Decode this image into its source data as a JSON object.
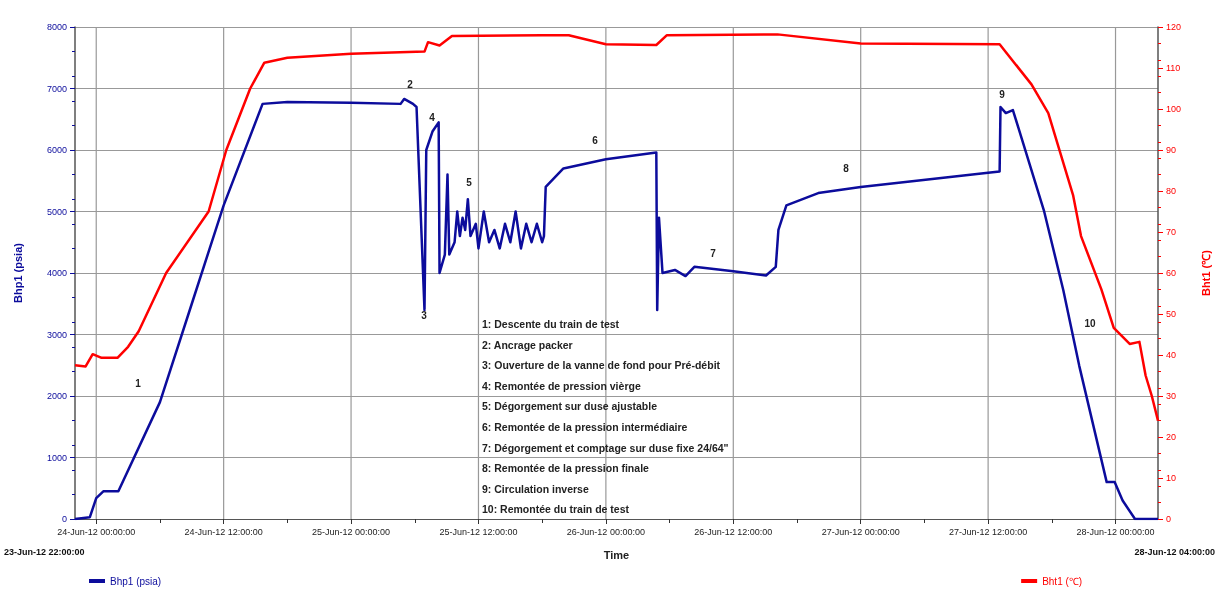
{
  "chart_data": {
    "type": "line",
    "xlabel": "Time",
    "ylabel": "Bhp1 (psia)",
    "y2label": "Bht1 (℃)",
    "xlim": [
      "--06-23T22:00",
      "--06-28T04:00"
    ],
    "xticks": [
      {
        "value": "--06-24T00:00",
        "label": "24-Jun-12 00:00:00"
      },
      {
        "value": "--06-24T06:00",
        "label": null
      },
      {
        "value": "--06-24T12:00",
        "label": "24-Jun-12 12:00:00"
      },
      {
        "value": "--06-24T18:00",
        "label": null
      },
      {
        "value": "--06-25T00:00",
        "label": "25-Jun-12 00:00:00"
      },
      {
        "value": "--06-25T06:00",
        "label": null
      },
      {
        "value": "--06-25T12:00",
        "label": "25-Jun-12 12:00:00"
      },
      {
        "value": "--06-25T18:00",
        "label": null
      },
      {
        "value": "--06-26T00:00",
        "label": "26-Jun-12 00:00:00"
      },
      {
        "value": "--06-26T06:00",
        "label": null
      },
      {
        "value": "--06-26T12:00",
        "label": "26-Jun-12 12:00:00"
      },
      {
        "value": "--06-26T18:00",
        "label": null
      },
      {
        "value": "--06-27T00:00",
        "label": "27-Jun-12 00:00:00"
      },
      {
        "value": "--06-27T06:00",
        "label": null
      },
      {
        "value": "--06-27T12:00",
        "label": "27-Jun-12 12:00:00"
      },
      {
        "value": "--06-27T18:00",
        "label": null
      },
      {
        "value": "--06-28T00:00",
        "label": "28-Jun-12 00:00:00"
      }
    ],
    "ylim": [
      0,
      8000
    ],
    "yticks": [
      0,
      1000,
      2000,
      3000,
      4000,
      5000,
      6000,
      7000,
      8000
    ],
    "y2lim": [
      0,
      120
    ],
    "y2ticks": [
      0,
      10,
      20,
      30,
      40,
      50,
      60,
      70,
      80,
      90,
      100,
      110,
      120
    ],
    "grid": true,
    "legend": "bottom",
    "marker": "none",
    "line_style": "solid",
    "series": [
      {
        "name": "Bhp1 (psia)",
        "color": "#0c0c9c",
        "x": [
          "--06-23T22:00",
          "--06-23T23:24",
          "--06-24T00:00",
          "--06-24T00:40",
          "--06-24T02:05",
          "--06-24T06:00",
          "--06-24T09:00",
          "--06-24T12:00",
          "--06-24T15:40",
          "--06-24T18:00",
          "--06-25T00:00",
          "--06-25T04:40",
          "--06-25T05:00",
          "--06-25T05:50",
          "--06-25T06:10",
          "--06-25T06:55",
          "--06-25T07:05",
          "--06-25T07:40",
          "--06-25T08:15",
          "--06-25T08:20",
          "--06-25T08:50",
          "--06-25T09:05",
          "--06-25T09:15",
          "--06-25T09:45",
          "--06-25T10:00",
          "--06-25T10:15",
          "--06-25T10:30",
          "--06-25T10:45",
          "--06-25T11:00",
          "--06-25T11:15",
          "--06-25T11:45",
          "--06-25T12:00",
          "--06-25T12:30",
          "--06-25T13:00",
          "--06-25T13:30",
          "--06-25T14:00",
          "--06-25T14:30",
          "--06-25T15:00",
          "--06-25T15:30",
          "--06-25T16:00",
          "--06-25T16:30",
          "--06-25T17:00",
          "--06-25T17:30",
          "--06-25T18:00",
          "--06-25T18:10",
          "--06-25T18:20",
          "--06-25T20:00",
          "--06-26T00:00",
          "--06-26T04:45",
          "--06-26T04:50",
          "--06-26T05:00",
          "--06-26T05:20",
          "--06-26T06:30",
          "--06-26T07:30",
          "--06-26T08:20",
          "--06-26T12:00",
          "--06-26T15:05",
          "--06-26T16:00",
          "--06-26T16:15",
          "--06-26T17:00",
          "--06-26T20:00",
          "--06-27T00:00",
          "--06-27T12:00",
          "--06-27T13:05",
          "--06-27T13:10",
          "--06-27T13:40",
          "--06-27T14:20",
          "--06-27T17:15",
          "--06-27T19:05",
          "--06-27T20:35",
          "--06-27T23:10",
          "--06-27T23:55",
          "--06-28T00:40",
          "--06-28T01:50",
          "--06-28T04:00"
        ],
        "values": [
          0,
          30,
          340,
          450,
          450,
          1900,
          3500,
          5100,
          6750,
          6780,
          6770,
          6750,
          6830,
          6750,
          6700,
          3400,
          6000,
          6300,
          6450,
          4000,
          4300,
          5600,
          4300,
          4500,
          5000,
          4600,
          4900,
          4700,
          5200,
          4600,
          4800,
          4400,
          5000,
          4500,
          4700,
          4400,
          4800,
          4500,
          5000,
          4400,
          4800,
          4500,
          4800,
          4500,
          4600,
          5400,
          5700,
          5850,
          5960,
          3400,
          4900,
          4000,
          4050,
          3950,
          4100,
          4030,
          3960,
          4100,
          4700,
          5100,
          5300,
          5400,
          5630,
          5650,
          6700,
          6600,
          6650,
          5020,
          3720,
          2490,
          600,
          600,
          300,
          0,
          0
        ]
      },
      {
        "name": "Bht1 (℃)",
        "color": "#ff0000",
        "axis": "y2",
        "x": [
          "--06-23T22:00",
          "--06-23T23:00",
          "--06-23T23:40",
          "--06-24T00:30",
          "--06-24T02:00",
          "--06-24T03:00",
          "--06-24T04:00",
          "--06-24T06:35",
          "--06-24T10:35",
          "--06-24T12:15",
          "--06-24T14:30",
          "--06-24T15:50",
          "--06-24T18:00",
          "--06-25T00:00",
          "--06-25T06:55",
          "--06-25T07:15",
          "--06-25T08:20",
          "--06-25T09:30",
          "--06-25T18:00",
          "--06-25T20:30",
          "--06-26T00:00",
          "--06-26T04:45",
          "--06-26T05:45",
          "--06-26T16:10",
          "--06-27T00:00",
          "--06-27T13:05",
          "--06-27T16:05",
          "--06-27T17:40",
          "--06-27T20:00",
          "--06-27T20:45",
          "--06-27T22:40",
          "--06-27T23:50",
          "--06-28T01:20",
          "--06-28T02:15",
          "--06-28T02:50",
          "--06-28T03:25",
          "--06-28T04:00"
        ],
        "values": [
          37.5,
          37.2,
          40.2,
          39.3,
          39.3,
          42,
          45.8,
          60,
          75,
          90,
          105,
          111.3,
          112.5,
          113.5,
          114,
          116.3,
          115.5,
          117.8,
          118,
          118,
          115.8,
          115.6,
          118,
          118.2,
          116,
          115.8,
          106,
          99,
          79,
          69,
          56,
          46.6,
          42.7,
          43.2,
          35,
          30,
          24
        ]
      }
    ],
    "annotations": [
      "1",
      "2",
      "3",
      "4",
      "5",
      "6",
      "7",
      "8",
      "9",
      "10",
      "1: Descente du train de test",
      "2: Ancrage packer",
      "3: Ouverture de la vanne de fond pour Pré-débit",
      "4: Remontée de pression vièrge",
      "5: Dégorgement sur duse ajustable",
      "6: Remontée de la pression intermédiaire",
      "7: Dégorgement et comptage sur duse fixe 24/64\"",
      "8: Remontée de la pression finale",
      "9: Circulation inverse",
      "10: Remontée du train de test",
      "23-Jun-12 22:00:00",
      "28-Jun-12 04:00:00"
    ]
  }
}
